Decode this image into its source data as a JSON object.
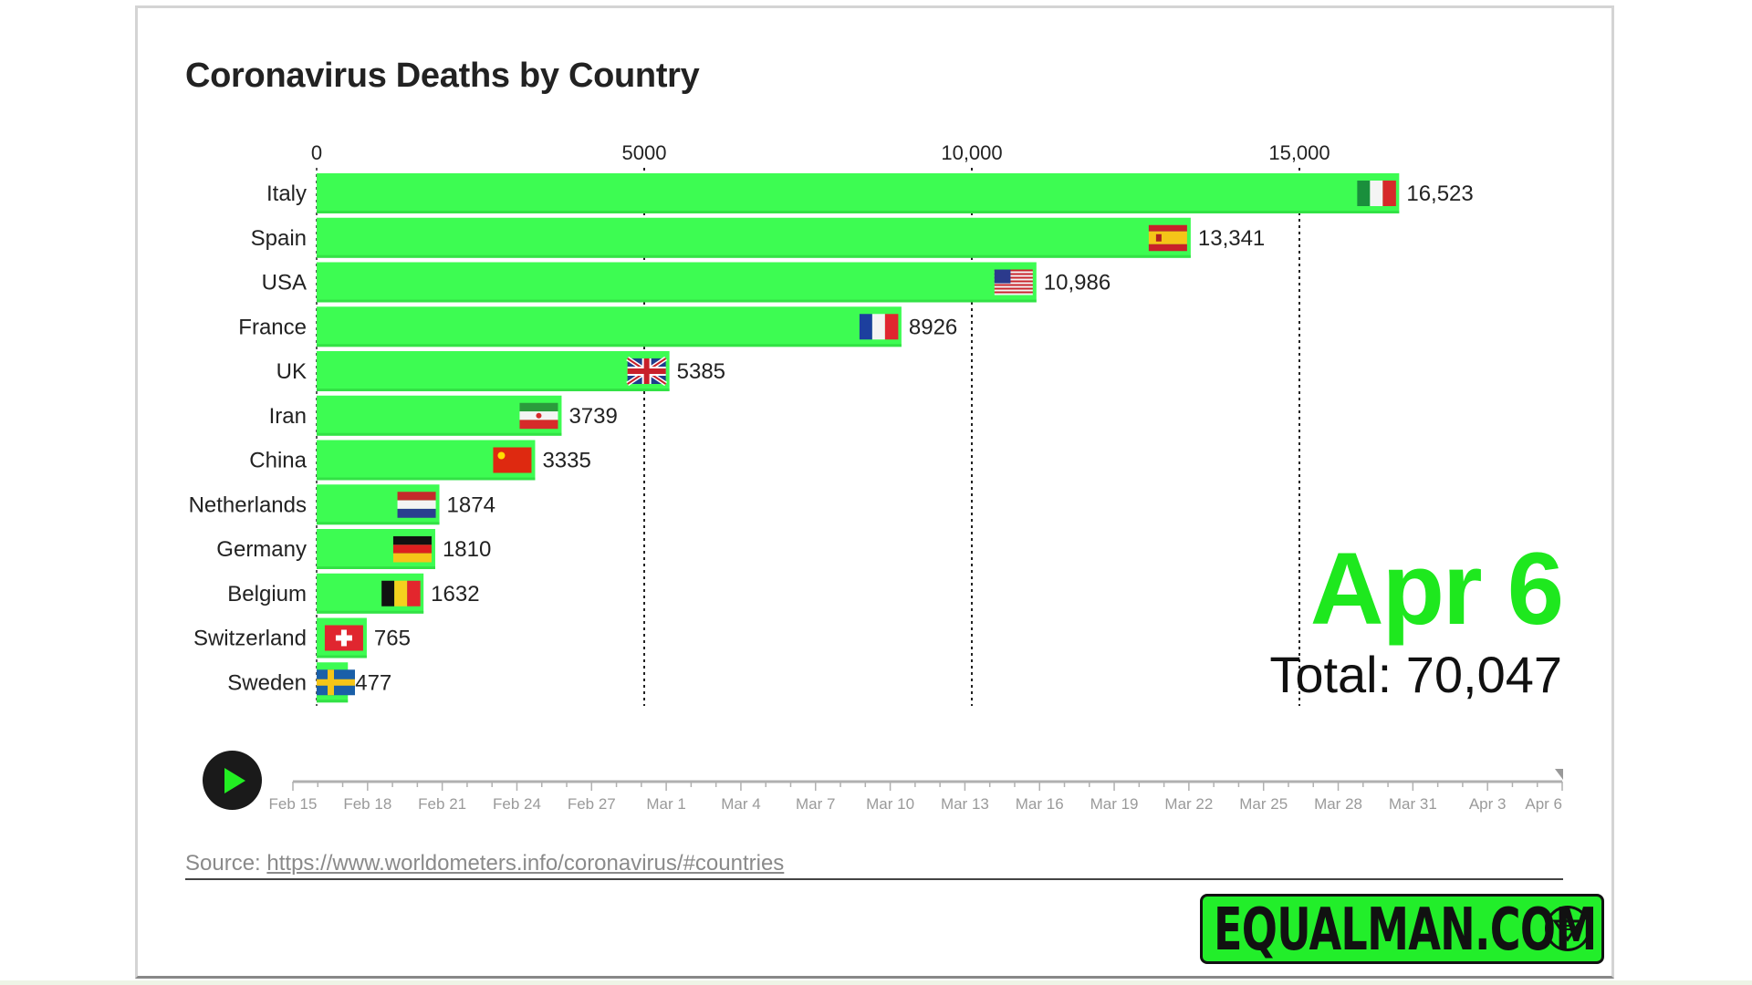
{
  "chart_data": {
    "type": "bar",
    "orientation": "horizontal",
    "title": "Coronavirus Deaths by Country",
    "categories": [
      "Italy",
      "Spain",
      "USA",
      "France",
      "UK",
      "Iran",
      "China",
      "Netherlands",
      "Germany",
      "Belgium",
      "Switzerland",
      "Sweden"
    ],
    "values": [
      16523,
      13341,
      10986,
      8926,
      5385,
      3739,
      3335,
      1874,
      1810,
      1632,
      765,
      477
    ],
    "value_labels": [
      "16,523",
      "13,341",
      "10,986",
      "8926",
      "5385",
      "3739",
      "3335",
      "1874",
      "1810",
      "1632",
      "765",
      "477"
    ],
    "flags": [
      "italy",
      "spain",
      "usa",
      "france",
      "uk",
      "iran",
      "china",
      "netherlands",
      "germany",
      "belgium",
      "switzerland",
      "sweden"
    ],
    "xticks": [
      0,
      5000,
      10000,
      15000
    ],
    "xtick_labels": [
      "0",
      "5000",
      "10,000",
      "15,000"
    ],
    "xlim": [
      0,
      16523
    ],
    "grid": "vertical dotted",
    "bar_color": "#3dfc52",
    "current_date": "Apr 6",
    "total_label": "Total: 70,047"
  },
  "timeline": {
    "dates": [
      "Feb 15",
      "Feb 18",
      "Feb 21",
      "Feb 24",
      "Feb 27",
      "Mar 1",
      "Mar 4",
      "Mar 7",
      "Mar 10",
      "Mar 13",
      "Mar 16",
      "Mar 19",
      "Mar 22",
      "Mar 25",
      "Mar 28",
      "Mar 31",
      "Apr 3",
      "Apr 6"
    ],
    "day_offsets": [
      0,
      3,
      6,
      9,
      12,
      15,
      18,
      21,
      24,
      27,
      30,
      33,
      36,
      39,
      42,
      45,
      48,
      51
    ],
    "total_days": 51,
    "current_day": 51,
    "play_icon": "play-icon"
  },
  "source": {
    "label": "Source:",
    "link": "https://www.worldometers.info/coronavirus/#countries"
  },
  "logo": {
    "text": "EQUALMAN.COM"
  },
  "colors": {
    "accent": "#1ee81e",
    "bar": "#3dfc52"
  }
}
